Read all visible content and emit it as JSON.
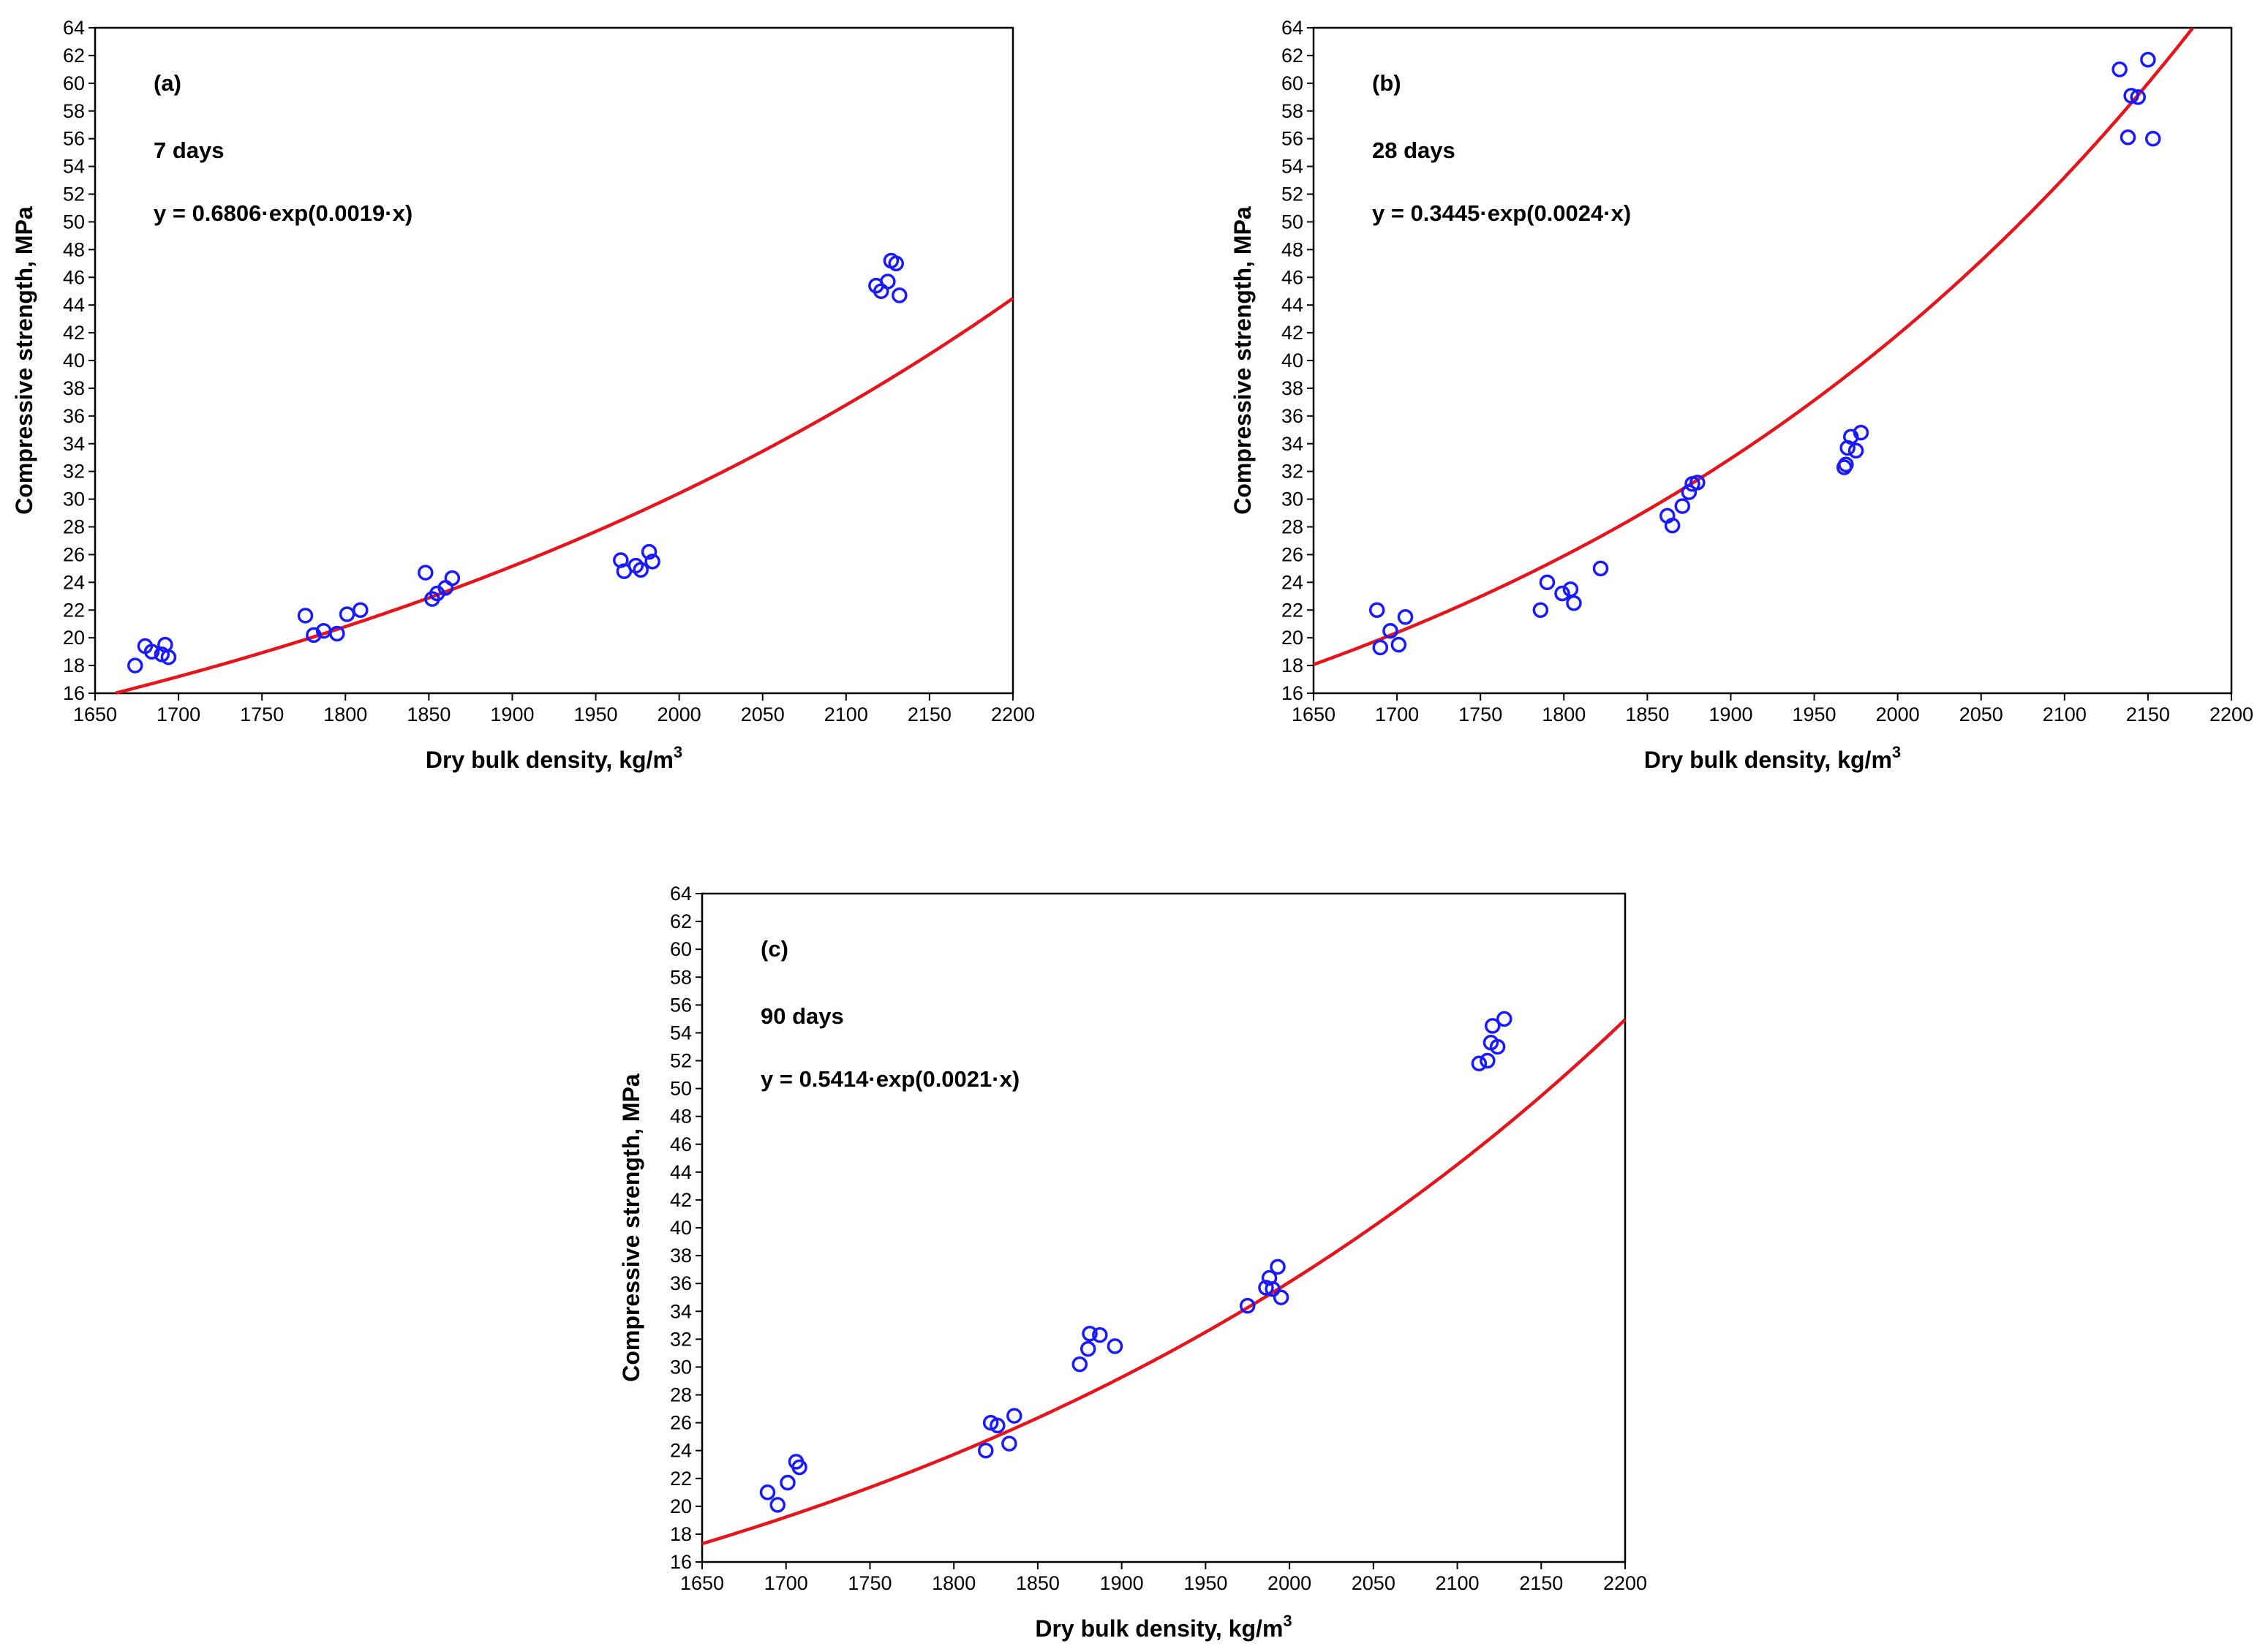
{
  "colors": {
    "fit": "#e8141b",
    "points": "#1a1aff"
  },
  "chart_data": [
    {
      "type": "scatter",
      "panel": "(a)",
      "age": "7 days",
      "equation": "y = 0.6806·exp(0.0019·x)",
      "fit": {
        "a": 0.6806,
        "b": 0.0019
      },
      "xlabel": "Dry bulk density, kg/m",
      "xlabel_sup": "3",
      "ylabel": "Compressive strength, MPa",
      "xlim": [
        1650,
        2200
      ],
      "ylim": [
        16,
        64
      ],
      "xticks": [
        1650,
        1700,
        1750,
        1800,
        1850,
        1900,
        1950,
        2000,
        2050,
        2100,
        2150,
        2200
      ],
      "yticks": [
        16,
        18,
        20,
        22,
        24,
        26,
        28,
        30,
        32,
        34,
        36,
        38,
        40,
        42,
        44,
        46,
        48,
        50,
        52,
        54,
        56,
        58,
        60,
        62,
        64
      ],
      "points": [
        [
          1674,
          18.0
        ],
        [
          1680,
          19.4
        ],
        [
          1684,
          19.0
        ],
        [
          1690,
          18.8
        ],
        [
          1692,
          19.5
        ],
        [
          1694,
          18.6
        ],
        [
          1776,
          21.6
        ],
        [
          1781,
          20.2
        ],
        [
          1787,
          20.5
        ],
        [
          1795,
          20.3
        ],
        [
          1801,
          21.7
        ],
        [
          1809,
          22.0
        ],
        [
          1848,
          24.7
        ],
        [
          1852,
          22.8
        ],
        [
          1855,
          23.2
        ],
        [
          1860,
          23.6
        ],
        [
          1864,
          24.3
        ],
        [
          1965,
          25.6
        ],
        [
          1967,
          24.8
        ],
        [
          1974,
          25.2
        ],
        [
          1977,
          24.9
        ],
        [
          1982,
          26.2
        ],
        [
          1984,
          25.5
        ],
        [
          2118,
          45.4
        ],
        [
          2121,
          45.0
        ],
        [
          2125,
          45.7
        ],
        [
          2127,
          47.2
        ],
        [
          2130,
          47.0
        ],
        [
          2132,
          44.7
        ]
      ]
    },
    {
      "type": "scatter",
      "panel": "(b)",
      "age": "28 days",
      "equation": "y = 0.3445·exp(0.0024·x)",
      "fit": {
        "a": 0.3445,
        "b": 0.0024
      },
      "xlabel": "Dry bulk density, kg/m",
      "xlabel_sup": "3",
      "ylabel": "Compressive strength, MPa",
      "xlim": [
        1650,
        2200
      ],
      "ylim": [
        16,
        64
      ],
      "xticks": [
        1650,
        1700,
        1750,
        1800,
        1850,
        1900,
        1950,
        2000,
        2050,
        2100,
        2150,
        2200
      ],
      "yticks": [
        16,
        18,
        20,
        22,
        24,
        26,
        28,
        30,
        32,
        34,
        36,
        38,
        40,
        42,
        44,
        46,
        48,
        50,
        52,
        54,
        56,
        58,
        60,
        62,
        64
      ],
      "points": [
        [
          1688,
          22.0
        ],
        [
          1690,
          19.3
        ],
        [
          1696,
          20.5
        ],
        [
          1701,
          19.5
        ],
        [
          1705,
          21.5
        ],
        [
          1786,
          22.0
        ],
        [
          1790,
          24.0
        ],
        [
          1799,
          23.2
        ],
        [
          1804,
          23.5
        ],
        [
          1806,
          22.5
        ],
        [
          1822,
          25.0
        ],
        [
          1862,
          28.8
        ],
        [
          1865,
          28.1
        ],
        [
          1871,
          29.5
        ],
        [
          1875,
          30.5
        ],
        [
          1877,
          31.1
        ],
        [
          1880,
          31.2
        ],
        [
          1968,
          32.3
        ],
        [
          1969,
          32.5
        ],
        [
          1970,
          33.7
        ],
        [
          1972,
          34.5
        ],
        [
          1975,
          33.5
        ],
        [
          1978,
          34.8
        ],
        [
          2133,
          61.0
        ],
        [
          2138,
          56.1
        ],
        [
          2140,
          59.1
        ],
        [
          2144,
          59.0
        ],
        [
          2150,
          61.7
        ],
        [
          2153,
          56.0
        ]
      ]
    },
    {
      "type": "scatter",
      "panel": "(c)",
      "age": "90 days",
      "equation": "y = 0.5414·exp(0.0021·x)",
      "fit": {
        "a": 0.5414,
        "b": 0.0021
      },
      "xlabel": "Dry bulk density, kg/m",
      "xlabel_sup": "3",
      "ylabel": "Compressive strength, MPa",
      "xlim": [
        1650,
        2200
      ],
      "ylim": [
        16,
        64
      ],
      "xticks": [
        1650,
        1700,
        1750,
        1800,
        1850,
        1900,
        1950,
        2000,
        2050,
        2100,
        2150,
        2200
      ],
      "yticks": [
        16,
        18,
        20,
        22,
        24,
        26,
        28,
        30,
        32,
        34,
        36,
        38,
        40,
        42,
        44,
        46,
        48,
        50,
        52,
        54,
        56,
        58,
        60,
        62,
        64
      ],
      "points": [
        [
          1689,
          21.0
        ],
        [
          1695,
          20.1
        ],
        [
          1701,
          21.7
        ],
        [
          1706,
          23.2
        ],
        [
          1708,
          22.8
        ],
        [
          1819,
          24.0
        ],
        [
          1822,
          26.0
        ],
        [
          1826,
          25.8
        ],
        [
          1833,
          24.5
        ],
        [
          1836,
          26.5
        ],
        [
          1875,
          30.2
        ],
        [
          1880,
          31.3
        ],
        [
          1881,
          32.4
        ],
        [
          1887,
          32.3
        ],
        [
          1896,
          31.5
        ],
        [
          1975,
          34.4
        ],
        [
          1986,
          35.7
        ],
        [
          1988,
          36.4
        ],
        [
          1990,
          35.6
        ],
        [
          1993,
          37.2
        ],
        [
          1995,
          35.0
        ],
        [
          2113,
          51.8
        ],
        [
          2118,
          52.0
        ],
        [
          2120,
          53.3
        ],
        [
          2121,
          54.5
        ],
        [
          2124,
          53.0
        ],
        [
          2128,
          55.0
        ]
      ]
    }
  ]
}
